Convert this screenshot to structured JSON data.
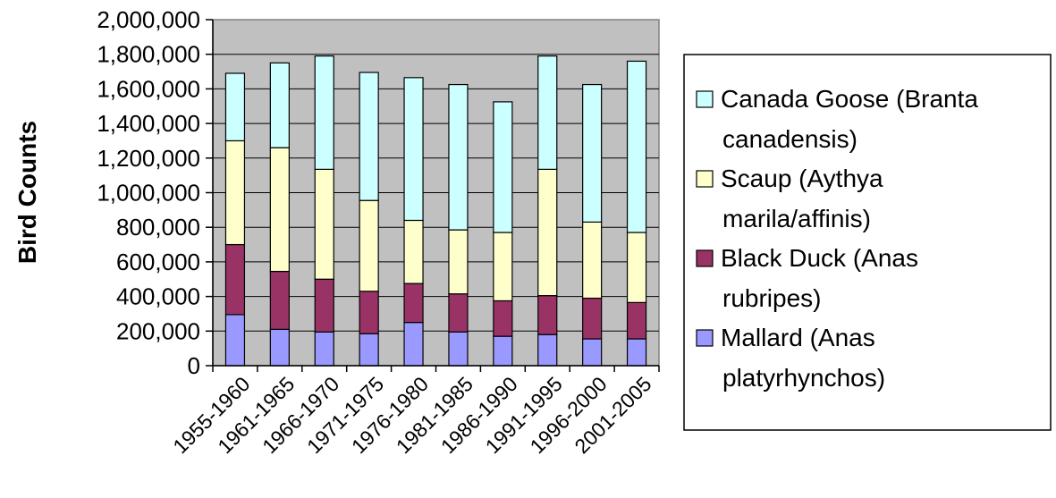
{
  "chart_data": {
    "type": "bar",
    "stacked": true,
    "categories": [
      "1955-1960",
      "1961-1965",
      "1966-1970",
      "1971-1975",
      "1976-1980",
      "1981-1985",
      "1986-1990",
      "1991-1995",
      "1996-2000",
      "2001-2005"
    ],
    "series": [
      {
        "name": "Mallard (Anas platyrhynchos)",
        "color": "#9999ff",
        "values": [
          295000,
          210000,
          195000,
          185000,
          250000,
          195000,
          170000,
          180000,
          155000,
          155000
        ]
      },
      {
        "name": "Black Duck (Anas rubripes)",
        "color": "#993366",
        "values": [
          405000,
          335000,
          305000,
          245000,
          225000,
          220000,
          205000,
          225000,
          235000,
          210000
        ]
      },
      {
        "name": "Scaup (Aythya marila/affinis)",
        "color": "#ffffcc",
        "values": [
          600000,
          715000,
          635000,
          525000,
          365000,
          370000,
          395000,
          730000,
          440000,
          405000
        ]
      },
      {
        "name": "Canada Goose (Branta canadensis)",
        "color": "#ccffff",
        "values": [
          390000,
          490000,
          655000,
          740000,
          825000,
          840000,
          755000,
          655000,
          795000,
          990000
        ]
      }
    ],
    "title": "",
    "xlabel": "",
    "ylabel": "Bird Counts",
    "ylim": [
      0,
      2000000
    ],
    "yticks": [
      "0",
      "200,000",
      "400,000",
      "600,000",
      "800,000",
      "1,000,000",
      "1,200,000",
      "1,400,000",
      "1,600,000",
      "1,800,000",
      "2,000,000"
    ],
    "legend": {
      "placement": "right",
      "entries": [
        {
          "lines": [
            "Canada Goose (Branta",
            "canadensis)"
          ],
          "color": "#ccffff"
        },
        {
          "lines": [
            "Scaup (Aythya",
            "marila/affinis)"
          ],
          "color": "#ffffcc"
        },
        {
          "lines": [
            "Black Duck (Anas",
            "rubripes)"
          ],
          "color": "#993366"
        },
        {
          "lines": [
            "Mallard (Anas",
            "platyrhynchos)"
          ],
          "color": "#9999ff"
        }
      ]
    },
    "grid": true,
    "plot_background": "#c0c0c0"
  }
}
